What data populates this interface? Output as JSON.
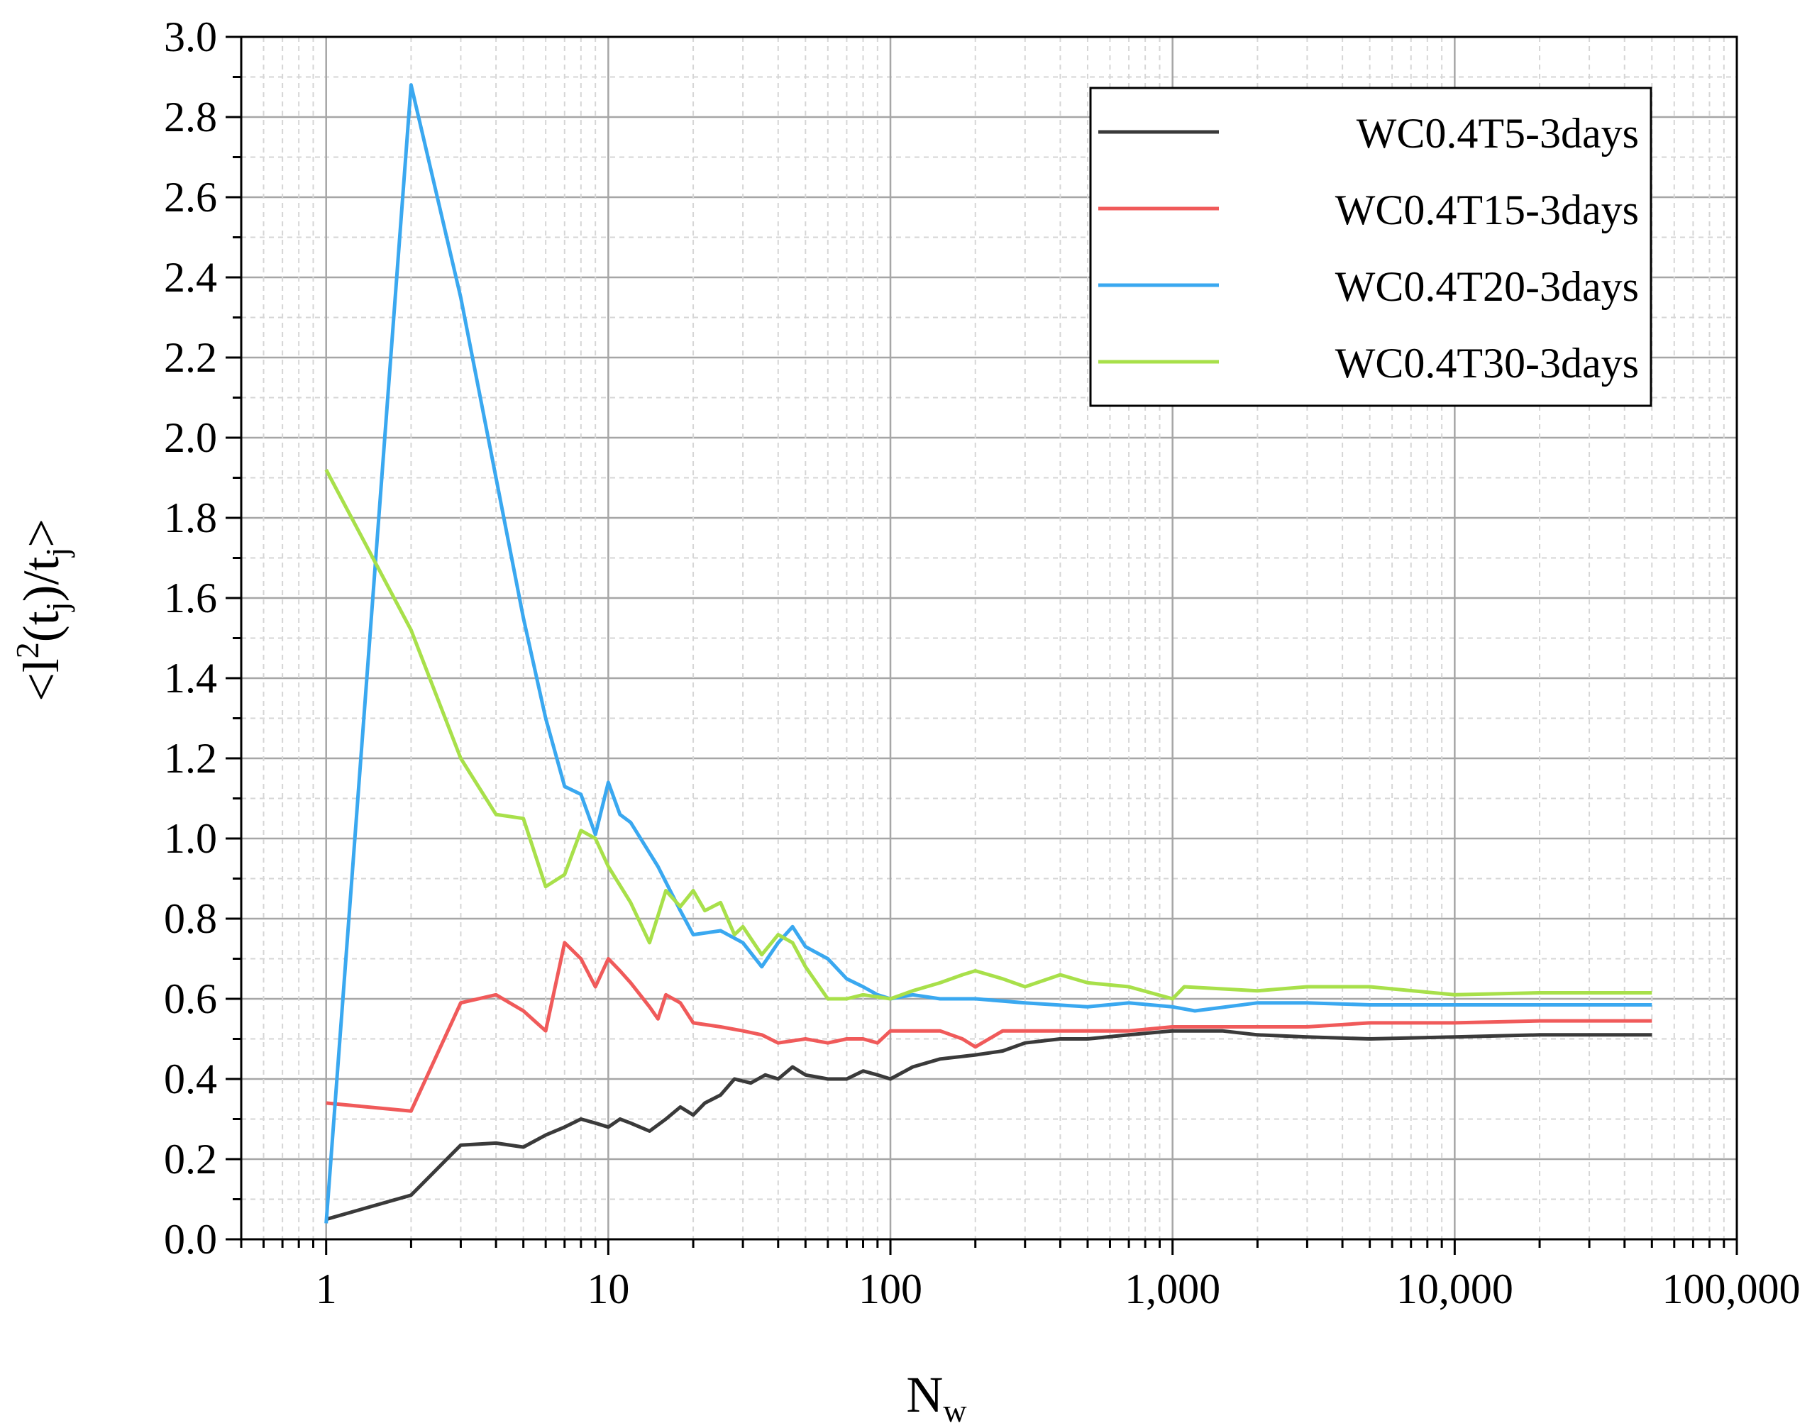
{
  "chart_data": {
    "type": "line",
    "title": "",
    "xlabel": {
      "main": "N",
      "sub": "w"
    },
    "ylabel": {
      "p1": "<l",
      "sup": "2",
      "p2": "(t",
      "sub1": "j",
      "p3": ")/t",
      "sub2": "j",
      "p4": ">"
    },
    "x_scale": "log",
    "xlim": [
      0.5,
      100000
    ],
    "ylim": [
      0.0,
      3.0
    ],
    "x_ticks": [
      1,
      10,
      100,
      1000,
      10000,
      100000
    ],
    "x_tick_labels": [
      "1",
      "10",
      "100",
      "1,000",
      "10,000",
      "100,000"
    ],
    "y_ticks": [
      0.0,
      0.2,
      0.4,
      0.6,
      0.8,
      1.0,
      1.2,
      1.4,
      1.6,
      1.8,
      2.0,
      2.2,
      2.4,
      2.6,
      2.8,
      3.0
    ],
    "y_tick_labels": [
      "0.0",
      "0.2",
      "0.4",
      "0.6",
      "0.8",
      "1.0",
      "1.2",
      "1.4",
      "1.6",
      "1.8",
      "2.0",
      "2.2",
      "2.4",
      "2.6",
      "2.8",
      "3.0"
    ],
    "grid": true,
    "legend_position": "top-right",
    "series": [
      {
        "name": "WC0.4T5-3days",
        "color": "#3a3a3a",
        "points": [
          [
            1,
            0.05
          ],
          [
            2,
            0.11
          ],
          [
            3,
            0.235
          ],
          [
            4,
            0.24
          ],
          [
            5,
            0.23
          ],
          [
            6,
            0.26
          ],
          [
            7,
            0.28
          ],
          [
            8,
            0.3
          ],
          [
            9,
            0.29
          ],
          [
            10,
            0.28
          ],
          [
            11,
            0.3
          ],
          [
            12,
            0.29
          ],
          [
            14,
            0.27
          ],
          [
            16,
            0.3
          ],
          [
            18,
            0.33
          ],
          [
            20,
            0.31
          ],
          [
            22,
            0.34
          ],
          [
            25,
            0.36
          ],
          [
            28,
            0.4
          ],
          [
            32,
            0.39
          ],
          [
            36,
            0.41
          ],
          [
            40,
            0.4
          ],
          [
            45,
            0.43
          ],
          [
            50,
            0.41
          ],
          [
            60,
            0.4
          ],
          [
            70,
            0.4
          ],
          [
            80,
            0.42
          ],
          [
            90,
            0.41
          ],
          [
            100,
            0.4
          ],
          [
            120,
            0.43
          ],
          [
            150,
            0.45
          ],
          [
            200,
            0.46
          ],
          [
            250,
            0.47
          ],
          [
            300,
            0.49
          ],
          [
            400,
            0.5
          ],
          [
            500,
            0.5
          ],
          [
            700,
            0.51
          ],
          [
            1000,
            0.52
          ],
          [
            1500,
            0.52
          ],
          [
            2000,
            0.51
          ],
          [
            3000,
            0.505
          ],
          [
            5000,
            0.5
          ],
          [
            10000,
            0.505
          ],
          [
            20000,
            0.51
          ],
          [
            50000,
            0.51
          ]
        ]
      },
      {
        "name": "WC0.4T15-3days",
        "color": "#f05a5a",
        "points": [
          [
            1,
            0.34
          ],
          [
            2,
            0.32
          ],
          [
            3,
            0.59
          ],
          [
            4,
            0.61
          ],
          [
            5,
            0.57
          ],
          [
            6,
            0.52
          ],
          [
            7,
            0.74
          ],
          [
            8,
            0.7
          ],
          [
            9,
            0.63
          ],
          [
            10,
            0.7
          ],
          [
            11,
            0.67
          ],
          [
            12,
            0.64
          ],
          [
            14,
            0.58
          ],
          [
            15,
            0.55
          ],
          [
            16,
            0.61
          ],
          [
            18,
            0.59
          ],
          [
            20,
            0.54
          ],
          [
            25,
            0.53
          ],
          [
            30,
            0.52
          ],
          [
            35,
            0.51
          ],
          [
            40,
            0.49
          ],
          [
            50,
            0.5
          ],
          [
            60,
            0.49
          ],
          [
            70,
            0.5
          ],
          [
            80,
            0.5
          ],
          [
            90,
            0.49
          ],
          [
            100,
            0.52
          ],
          [
            150,
            0.52
          ],
          [
            180,
            0.5
          ],
          [
            200,
            0.48
          ],
          [
            250,
            0.52
          ],
          [
            300,
            0.52
          ],
          [
            500,
            0.52
          ],
          [
            700,
            0.52
          ],
          [
            1000,
            0.53
          ],
          [
            2000,
            0.53
          ],
          [
            3000,
            0.53
          ],
          [
            5000,
            0.54
          ],
          [
            10000,
            0.54
          ],
          [
            20000,
            0.545
          ],
          [
            50000,
            0.545
          ]
        ]
      },
      {
        "name": "WC0.4T20-3days",
        "color": "#3aa8f0",
        "points": [
          [
            1,
            0.04
          ],
          [
            2,
            2.88
          ],
          [
            3,
            2.35
          ],
          [
            4,
            1.9
          ],
          [
            5,
            1.55
          ],
          [
            6,
            1.3
          ],
          [
            7,
            1.13
          ],
          [
            8,
            1.11
          ],
          [
            9,
            1.01
          ],
          [
            10,
            1.14
          ],
          [
            11,
            1.06
          ],
          [
            12,
            1.04
          ],
          [
            15,
            0.93
          ],
          [
            18,
            0.82
          ],
          [
            20,
            0.76
          ],
          [
            25,
            0.77
          ],
          [
            30,
            0.74
          ],
          [
            35,
            0.68
          ],
          [
            40,
            0.74
          ],
          [
            45,
            0.78
          ],
          [
            50,
            0.73
          ],
          [
            60,
            0.7
          ],
          [
            70,
            0.65
          ],
          [
            80,
            0.63
          ],
          [
            90,
            0.61
          ],
          [
            100,
            0.6
          ],
          [
            120,
            0.61
          ],
          [
            150,
            0.6
          ],
          [
            200,
            0.6
          ],
          [
            300,
            0.59
          ],
          [
            500,
            0.58
          ],
          [
            700,
            0.59
          ],
          [
            1000,
            0.58
          ],
          [
            1200,
            0.57
          ],
          [
            2000,
            0.59
          ],
          [
            3000,
            0.59
          ],
          [
            5000,
            0.585
          ],
          [
            10000,
            0.585
          ],
          [
            20000,
            0.585
          ],
          [
            50000,
            0.585
          ]
        ]
      },
      {
        "name": "WC0.4T30-3days",
        "color": "#a8e04a",
        "points": [
          [
            1,
            1.92
          ],
          [
            2,
            1.52
          ],
          [
            3,
            1.2
          ],
          [
            4,
            1.06
          ],
          [
            5,
            1.05
          ],
          [
            6,
            0.88
          ],
          [
            7,
            0.91
          ],
          [
            8,
            1.02
          ],
          [
            9,
            1.0
          ],
          [
            10,
            0.93
          ],
          [
            12,
            0.84
          ],
          [
            14,
            0.74
          ],
          [
            16,
            0.87
          ],
          [
            18,
            0.83
          ],
          [
            20,
            0.87
          ],
          [
            22,
            0.82
          ],
          [
            25,
            0.84
          ],
          [
            28,
            0.76
          ],
          [
            30,
            0.78
          ],
          [
            35,
            0.71
          ],
          [
            40,
            0.76
          ],
          [
            45,
            0.74
          ],
          [
            50,
            0.68
          ],
          [
            60,
            0.6
          ],
          [
            70,
            0.6
          ],
          [
            80,
            0.61
          ],
          [
            100,
            0.6
          ],
          [
            120,
            0.62
          ],
          [
            150,
            0.64
          ],
          [
            180,
            0.66
          ],
          [
            200,
            0.67
          ],
          [
            250,
            0.65
          ],
          [
            300,
            0.63
          ],
          [
            400,
            0.66
          ],
          [
            500,
            0.64
          ],
          [
            700,
            0.63
          ],
          [
            1000,
            0.6
          ],
          [
            1100,
            0.63
          ],
          [
            2000,
            0.62
          ],
          [
            3000,
            0.63
          ],
          [
            5000,
            0.63
          ],
          [
            10000,
            0.61
          ],
          [
            20000,
            0.615
          ],
          [
            50000,
            0.615
          ]
        ]
      }
    ]
  }
}
